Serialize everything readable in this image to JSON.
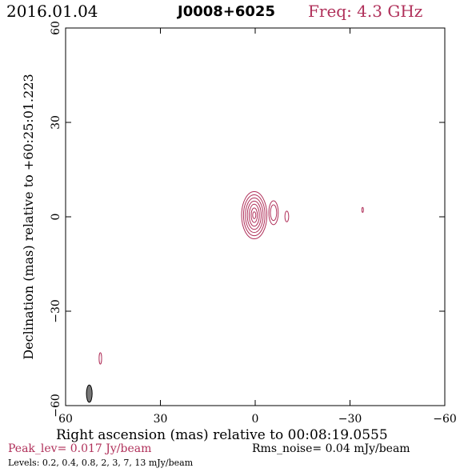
{
  "header": {
    "date": "2016.01.04",
    "source": "J0008+6025",
    "freq": "Freq: 4.3 GHz"
  },
  "accent_color": "#b0305a",
  "chart_data": {
    "type": "contour",
    "xlabel": "Right ascension (mas) relative to 00:08:19.0555",
    "ylabel": "Declination (mas) relative to +60:25:01.223",
    "xlim": [
      60,
      -60
    ],
    "ylim": [
      -60,
      60
    ],
    "x_ticks": [
      "60",
      "30",
      "0",
      "−30",
      "−60"
    ],
    "y_ticks": [
      "−60",
      "−30",
      "0",
      "30",
      "60"
    ],
    "peak_level": "Peak_lev=  0.017 Jy/beam",
    "rms_noise": "Rms_noise= 0.04 mJy/beam",
    "levels_text": "Levels: 0.2,  0.4,  0.8,    2,    3,    7,   13 mJy/beam",
    "contour_levels_mJy": [
      0.2,
      0.4,
      0.8,
      2,
      3,
      7,
      13
    ],
    "components": [
      {
        "x": 0.3,
        "y": 0.5,
        "sx": [
          4.0,
          3.4,
          2.8,
          2.2,
          1.6,
          1.0,
          0.5
        ],
        "sy": [
          7.5,
          6.5,
          5.5,
          4.5,
          3.5,
          2.3,
          1.1
        ]
      },
      {
        "x": -5.8,
        "y": 1.3,
        "sx": [
          1.5,
          1.0
        ],
        "sy": [
          3.8,
          2.5
        ]
      },
      {
        "x": -10.0,
        "y": 0.1,
        "sx": [
          0.6
        ],
        "sy": [
          1.7
        ]
      },
      {
        "x": -34.0,
        "y": 2.2,
        "sx": [
          0.25
        ],
        "sy": [
          0.8
        ]
      },
      {
        "x": 49.0,
        "y": -45.0,
        "sx": [
          0.4
        ],
        "sy": [
          1.8
        ]
      }
    ],
    "beam": {
      "x": 52.5,
      "y": -56.2,
      "major_mas": 5.5,
      "minor_mas": 1.8,
      "pa_deg": 0
    }
  }
}
